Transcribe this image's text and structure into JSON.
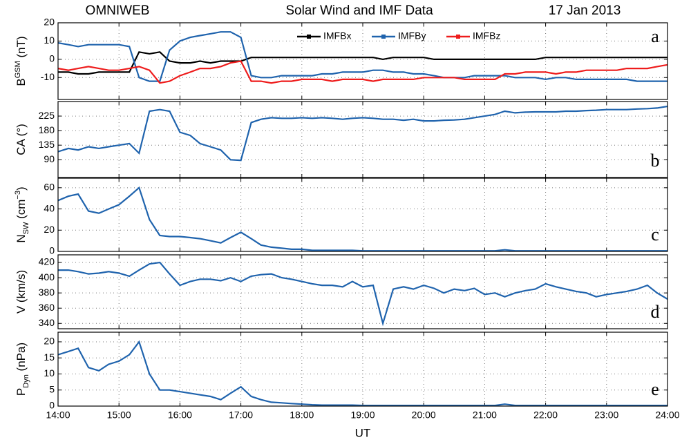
{
  "header": {
    "source": "OMNIWEB",
    "title": "Solar Wind and IMF Data",
    "date": "17 Jan 2013"
  },
  "chart_data": [
    {
      "type": "line",
      "label": "a",
      "legend": "top",
      "grid": true,
      "show_xtick_labels": false,
      "ylabel": [
        {
          "text": "B"
        },
        {
          "text": "GSM",
          "shift": "super"
        },
        {
          "text": " (nT)"
        }
      ],
      "xlim": [
        14,
        24
      ],
      "xticks": [
        {
          "value": 14,
          "label": "14:00"
        },
        {
          "value": 15,
          "label": "15:00"
        },
        {
          "value": 16,
          "label": "16:00"
        },
        {
          "value": 17,
          "label": "17:00"
        },
        {
          "value": 18,
          "label": "18:00"
        },
        {
          "value": 19,
          "label": "19:00"
        },
        {
          "value": 20,
          "label": "20:00"
        },
        {
          "value": 21,
          "label": "21:00"
        },
        {
          "value": 22,
          "label": "22:00"
        },
        {
          "value": 23,
          "label": "23:00"
        },
        {
          "value": 24,
          "label": "24:00"
        }
      ],
      "ylim": [
        -22,
        20
      ],
      "yticks": [
        -10,
        0,
        10,
        20
      ],
      "x": [
        14,
        14.17,
        14.33,
        14.5,
        14.67,
        14.83,
        15,
        15.17,
        15.33,
        15.5,
        15.67,
        15.83,
        16,
        16.17,
        16.33,
        16.5,
        16.67,
        16.83,
        17,
        17.17,
        17.33,
        17.5,
        17.67,
        17.83,
        18,
        18.17,
        18.33,
        18.5,
        18.67,
        18.83,
        19,
        19.17,
        19.33,
        19.5,
        19.67,
        19.83,
        20,
        20.17,
        20.33,
        20.5,
        20.67,
        20.83,
        21,
        21.17,
        21.33,
        21.5,
        21.67,
        21.83,
        22,
        22.17,
        22.33,
        22.5,
        22.67,
        22.83,
        23,
        23.17,
        23.33,
        23.5,
        23.67,
        23.83,
        24
      ],
      "series": [
        {
          "name": "IMFBx",
          "color": "#000000",
          "values": [
            -7,
            -7,
            -8,
            -8,
            -7,
            -7,
            -7,
            -7,
            4,
            3,
            4,
            -1,
            -2,
            -2,
            -1,
            -2,
            -1,
            -1,
            -1,
            1,
            1,
            1,
            1,
            1,
            1,
            1,
            1,
            1,
            1,
            1,
            1,
            1,
            0,
            1,
            1,
            1,
            1,
            0,
            0,
            0,
            0,
            0,
            0,
            0,
            0,
            0,
            0,
            0,
            1,
            1,
            1,
            1,
            1,
            1,
            1,
            1,
            1,
            1,
            1,
            1,
            1
          ]
        },
        {
          "name": "IMFBy",
          "color": "#1f63ad",
          "values": [
            9,
            8,
            7,
            8,
            8,
            8,
            8,
            7,
            -10,
            -12,
            -12,
            5,
            10,
            12,
            13,
            14,
            15,
            15,
            12,
            -9,
            -10,
            -10,
            -9,
            -9,
            -9,
            -9,
            -8,
            -8,
            -7,
            -7,
            -7,
            -6,
            -6,
            -7,
            -7,
            -8,
            -8,
            -9,
            -10,
            -10,
            -10,
            -9,
            -9,
            -9,
            -9,
            -10,
            -10,
            -10,
            -11,
            -10,
            -10,
            -11,
            -11,
            -11,
            -11,
            -11,
            -11,
            -12,
            -12,
            -12,
            -12
          ]
        },
        {
          "name": "IMFBz",
          "color": "#ee1c1c",
          "values": [
            -5,
            -6,
            -5,
            -4,
            -5,
            -6,
            -6,
            -5,
            -4,
            -6,
            -13,
            -12,
            -9,
            -7,
            -5,
            -5,
            -4,
            -2,
            -1,
            -12,
            -12,
            -13,
            -12,
            -12,
            -11,
            -11,
            -11,
            -12,
            -11,
            -11,
            -11,
            -12,
            -11,
            -11,
            -11,
            -11,
            -10,
            -10,
            -10,
            -10,
            -11,
            -11,
            -11,
            -11,
            -8,
            -8,
            -7,
            -7,
            -7,
            -8,
            -7,
            -7,
            -6,
            -6,
            -6,
            -6,
            -5,
            -5,
            -5,
            -4,
            -3
          ]
        }
      ]
    },
    {
      "type": "line",
      "label": "b",
      "grid": true,
      "show_xtick_labels": false,
      "ylabel": [
        {
          "text": "CA (°)"
        }
      ],
      "xlim": [
        14,
        24
      ],
      "xticks": [
        {
          "value": 14,
          "label": "14:00"
        },
        {
          "value": 15,
          "label": "15:00"
        },
        {
          "value": 16,
          "label": "16:00"
        },
        {
          "value": 17,
          "label": "17:00"
        },
        {
          "value": 18,
          "label": "18:00"
        },
        {
          "value": 19,
          "label": "19:00"
        },
        {
          "value": 20,
          "label": "20:00"
        },
        {
          "value": 21,
          "label": "21:00"
        },
        {
          "value": 22,
          "label": "22:00"
        },
        {
          "value": 23,
          "label": "23:00"
        },
        {
          "value": 24,
          "label": "24:00"
        }
      ],
      "ylim": [
        35,
        270
      ],
      "yticks": [
        90,
        135,
        180,
        225
      ],
      "x": [
        14,
        14.17,
        14.33,
        14.5,
        14.67,
        14.83,
        15,
        15.17,
        15.33,
        15.5,
        15.67,
        15.83,
        16,
        16.17,
        16.33,
        16.5,
        16.67,
        16.83,
        17,
        17.17,
        17.33,
        17.5,
        17.67,
        17.83,
        18,
        18.17,
        18.33,
        18.5,
        18.67,
        18.83,
        19,
        19.17,
        19.33,
        19.5,
        19.67,
        19.83,
        20,
        20.17,
        20.33,
        20.5,
        20.67,
        20.83,
        21,
        21.17,
        21.33,
        21.5,
        21.67,
        21.83,
        22,
        22.17,
        22.33,
        22.5,
        22.67,
        22.83,
        23,
        23.17,
        23.33,
        23.5,
        23.67,
        23.83,
        24
      ],
      "series": [
        {
          "color": "#1f63ad",
          "values": [
            115,
            125,
            120,
            130,
            125,
            130,
            135,
            140,
            110,
            240,
            245,
            240,
            175,
            165,
            140,
            130,
            120,
            90,
            88,
            205,
            215,
            220,
            218,
            218,
            220,
            218,
            220,
            218,
            215,
            218,
            220,
            218,
            215,
            215,
            212,
            215,
            210,
            210,
            212,
            213,
            215,
            220,
            225,
            230,
            240,
            235,
            237,
            238,
            238,
            238,
            240,
            240,
            242,
            243,
            245,
            245,
            245,
            247,
            248,
            250,
            255
          ]
        }
      ]
    },
    {
      "type": "line",
      "label": "c",
      "grid": true,
      "show_xtick_labels": false,
      "ylabel": [
        {
          "text": "N"
        },
        {
          "text": "SW",
          "shift": "sub"
        },
        {
          "text": " (cm"
        },
        {
          "text": "−3",
          "shift": "super"
        },
        {
          "text": ")"
        }
      ],
      "xlim": [
        14,
        24
      ],
      "xticks": [
        {
          "value": 14,
          "label": "14:00"
        },
        {
          "value": 15,
          "label": "15:00"
        },
        {
          "value": 16,
          "label": "16:00"
        },
        {
          "value": 17,
          "label": "17:00"
        },
        {
          "value": 18,
          "label": "18:00"
        },
        {
          "value": 19,
          "label": "19:00"
        },
        {
          "value": 20,
          "label": "20:00"
        },
        {
          "value": 21,
          "label": "21:00"
        },
        {
          "value": 22,
          "label": "22:00"
        },
        {
          "value": 23,
          "label": "23:00"
        },
        {
          "value": 24,
          "label": "24:00"
        }
      ],
      "ylim": [
        0,
        69
      ],
      "yticks": [
        0,
        20,
        40,
        60
      ],
      "x": [
        14,
        14.17,
        14.33,
        14.5,
        14.67,
        14.83,
        15,
        15.17,
        15.33,
        15.5,
        15.67,
        15.83,
        16,
        16.17,
        16.33,
        16.5,
        16.67,
        16.83,
        17,
        17.17,
        17.33,
        17.5,
        17.67,
        17.83,
        18,
        18.17,
        18.33,
        18.5,
        18.67,
        18.83,
        19,
        19.17,
        19.33,
        19.5,
        19.67,
        19.83,
        20,
        20.17,
        20.33,
        20.5,
        20.67,
        20.83,
        21,
        21.17,
        21.33,
        21.5,
        21.67,
        21.83,
        22,
        22.17,
        22.33,
        22.5,
        22.67,
        22.83,
        23,
        23.17,
        23.33,
        23.5,
        23.67,
        23.83,
        24
      ],
      "series": [
        {
          "color": "#1f63ad",
          "values": [
            48,
            52,
            54,
            38,
            36,
            40,
            44,
            52,
            60,
            30,
            15,
            14,
            14,
            13,
            12,
            10,
            8,
            13,
            18,
            12,
            6,
            4,
            3,
            2,
            2,
            1,
            1,
            1,
            1,
            1,
            0.5,
            0.5,
            0.5,
            0.5,
            0.5,
            0.5,
            0.5,
            0.5,
            0.5,
            0.5,
            0.5,
            0.5,
            0.5,
            0.5,
            1.5,
            0.5,
            0.5,
            0.5,
            0.5,
            0.5,
            0.5,
            0.5,
            0.5,
            0.5,
            0.5,
            0.5,
            0.5,
            0.5,
            0.5,
            0.5,
            0.5
          ]
        }
      ]
    },
    {
      "type": "line",
      "label": "d",
      "grid": true,
      "show_xtick_labels": false,
      "ylabel": [
        {
          "text": "V (km/s)"
        }
      ],
      "xlim": [
        14,
        24
      ],
      "xticks": [
        {
          "value": 14,
          "label": "14:00"
        },
        {
          "value": 15,
          "label": "15:00"
        },
        {
          "value": 16,
          "label": "16:00"
        },
        {
          "value": 17,
          "label": "17:00"
        },
        {
          "value": 18,
          "label": "18:00"
        },
        {
          "value": 19,
          "label": "19:00"
        },
        {
          "value": 20,
          "label": "20:00"
        },
        {
          "value": 21,
          "label": "21:00"
        },
        {
          "value": 22,
          "label": "22:00"
        },
        {
          "value": 23,
          "label": "23:00"
        },
        {
          "value": 24,
          "label": "24:00"
        }
      ],
      "ylim": [
        333,
        430
      ],
      "yticks": [
        340,
        360,
        380,
        400,
        420
      ],
      "x": [
        14,
        14.17,
        14.33,
        14.5,
        14.67,
        14.83,
        15,
        15.17,
        15.33,
        15.5,
        15.67,
        15.83,
        16,
        16.17,
        16.33,
        16.5,
        16.67,
        16.83,
        17,
        17.17,
        17.33,
        17.5,
        17.67,
        17.83,
        18,
        18.17,
        18.33,
        18.5,
        18.67,
        18.83,
        19,
        19.17,
        19.33,
        19.5,
        19.67,
        19.83,
        20,
        20.17,
        20.33,
        20.5,
        20.67,
        20.83,
        21,
        21.17,
        21.33,
        21.5,
        21.67,
        21.83,
        22,
        22.17,
        22.33,
        22.5,
        22.67,
        22.83,
        23,
        23.17,
        23.33,
        23.5,
        23.67,
        23.83,
        24
      ],
      "series": [
        {
          "color": "#1f63ad",
          "values": [
            410,
            410,
            408,
            405,
            406,
            408,
            406,
            402,
            410,
            418,
            420,
            405,
            390,
            395,
            398,
            398,
            396,
            400,
            395,
            402,
            404,
            405,
            400,
            398,
            395,
            392,
            390,
            390,
            388,
            395,
            388,
            390,
            340,
            385,
            388,
            385,
            390,
            386,
            380,
            385,
            383,
            386,
            378,
            380,
            375,
            380,
            383,
            385,
            392,
            388,
            385,
            382,
            380,
            375,
            378,
            380,
            382,
            385,
            390,
            380,
            372
          ]
        }
      ]
    },
    {
      "type": "line",
      "label": "e",
      "grid": true,
      "show_xtick_labels": true,
      "xlabel": "UT",
      "ylabel": [
        {
          "text": "P"
        },
        {
          "text": "Dyn",
          "shift": "sub"
        },
        {
          "text": " (nPa)"
        }
      ],
      "xlim": [
        14,
        24
      ],
      "xticks": [
        {
          "value": 14,
          "label": "14:00"
        },
        {
          "value": 15,
          "label": "15:00"
        },
        {
          "value": 16,
          "label": "16:00"
        },
        {
          "value": 17,
          "label": "17:00"
        },
        {
          "value": 18,
          "label": "18:00"
        },
        {
          "value": 19,
          "label": "19:00"
        },
        {
          "value": 20,
          "label": "20:00"
        },
        {
          "value": 21,
          "label": "21:00"
        },
        {
          "value": 22,
          "label": "22:00"
        },
        {
          "value": 23,
          "label": "23:00"
        },
        {
          "value": 24,
          "label": "24:00"
        }
      ],
      "ylim": [
        0,
        23
      ],
      "yticks": [
        0,
        5,
        10,
        15,
        20
      ],
      "x": [
        14,
        14.17,
        14.33,
        14.5,
        14.67,
        14.83,
        15,
        15.17,
        15.33,
        15.5,
        15.67,
        15.83,
        16,
        16.17,
        16.33,
        16.5,
        16.67,
        16.83,
        17,
        17.17,
        17.33,
        17.5,
        17.67,
        17.83,
        18,
        18.17,
        18.33,
        18.5,
        18.67,
        18.83,
        19,
        19.17,
        19.33,
        19.5,
        19.67,
        19.83,
        20,
        20.17,
        20.33,
        20.5,
        20.67,
        20.83,
        21,
        21.17,
        21.33,
        21.5,
        21.67,
        21.83,
        22,
        22.17,
        22.33,
        22.5,
        22.67,
        22.83,
        23,
        23.17,
        23.33,
        23.5,
        23.67,
        23.83,
        24
      ],
      "series": [
        {
          "color": "#1f63ad",
          "values": [
            16,
            17,
            18,
            12,
            11,
            13,
            14,
            16,
            20,
            10,
            5,
            5,
            4.5,
            4,
            3.5,
            3,
            2,
            4,
            6,
            3,
            2,
            1.2,
            1,
            0.8,
            0.6,
            0.4,
            0.3,
            0.3,
            0.3,
            0.3,
            0.2,
            0.2,
            0.2,
            0.2,
            0.2,
            0.2,
            0.2,
            0.2,
            0.2,
            0.2,
            0.2,
            0.2,
            0.2,
            0.2,
            0.6,
            0.2,
            0.2,
            0.2,
            0.2,
            0.2,
            0.2,
            0.2,
            0.2,
            0.2,
            0.2,
            0.2,
            0.2,
            0.2,
            0.2,
            0.2,
            0.2
          ]
        }
      ]
    }
  ]
}
